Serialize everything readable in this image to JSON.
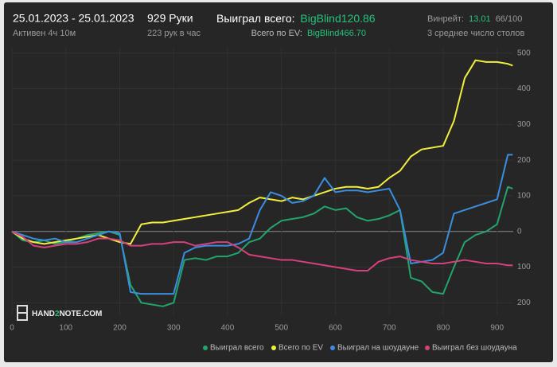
{
  "header": {
    "date_range": "25.01.2023 - 25.01.2023",
    "active": "Активен 4ч 10м",
    "hands": "929 Руки",
    "hands_per_hour": "223 рук в час",
    "won_label": "Выиграл всего:",
    "won_value": "BigBlind120.86",
    "ev_label": "Всего по EV:",
    "ev_value": "BigBlind466.70",
    "winrate_label": "Винрейт:",
    "winrate_value": "13.01",
    "winrate_rest": "66/100",
    "tables": "3 среднее число столов"
  },
  "logo": {
    "part1": "HAND",
    "part2": "2",
    "part3": "NOTE.COM"
  },
  "chart_data": {
    "type": "line",
    "x": [
      0,
      20,
      40,
      60,
      80,
      100,
      120,
      140,
      160,
      180,
      200,
      220,
      240,
      260,
      280,
      300,
      320,
      340,
      360,
      380,
      400,
      420,
      440,
      460,
      480,
      500,
      520,
      540,
      560,
      580,
      600,
      620,
      640,
      660,
      680,
      700,
      720,
      740,
      760,
      780,
      800,
      820,
      840,
      860,
      880,
      900,
      920,
      929
    ],
    "series": [
      {
        "name": "Выиграл всего",
        "color": "#22a56c",
        "values": [
          0,
          -25,
          -30,
          -25,
          -35,
          -30,
          -20,
          -10,
          -5,
          0,
          -10,
          -150,
          -200,
          -205,
          -210,
          -200,
          -80,
          -75,
          -80,
          -70,
          -70,
          -60,
          -30,
          -20,
          10,
          30,
          35,
          40,
          50,
          70,
          60,
          65,
          40,
          30,
          35,
          45,
          60,
          -130,
          -140,
          -170,
          -175,
          -100,
          -30,
          -10,
          0,
          20,
          125,
          120
        ]
      },
      {
        "name": "Всего по EV",
        "color": "#f0f03c",
        "values": [
          0,
          -20,
          -30,
          -35,
          -30,
          -25,
          -20,
          -15,
          -10,
          -20,
          -30,
          -35,
          20,
          25,
          25,
          30,
          35,
          40,
          45,
          50,
          55,
          60,
          80,
          95,
          90,
          85,
          95,
          90,
          100,
          110,
          120,
          125,
          125,
          120,
          125,
          150,
          170,
          210,
          230,
          235,
          240,
          310,
          430,
          480,
          475,
          475,
          470,
          465
        ]
      },
      {
        "name": "Выиграл на шоудауне",
        "color": "#3a8ee0",
        "values": [
          0,
          -10,
          -20,
          -25,
          -20,
          -30,
          -30,
          -20,
          -10,
          0,
          -5,
          -170,
          -175,
          -175,
          -175,
          -175,
          -60,
          -45,
          -40,
          -40,
          -40,
          -35,
          -20,
          60,
          110,
          100,
          80,
          85,
          100,
          150,
          110,
          115,
          115,
          110,
          115,
          120,
          60,
          -90,
          -85,
          -80,
          -60,
          50,
          60,
          70,
          80,
          90,
          215,
          215
        ]
      },
      {
        "name": "Выиграл без шоудауна",
        "color": "#d6407c",
        "values": [
          0,
          -15,
          -40,
          -45,
          -40,
          -35,
          -35,
          -30,
          -20,
          -20,
          -25,
          -40,
          -40,
          -35,
          -35,
          -30,
          -30,
          -40,
          -35,
          -30,
          -30,
          -45,
          -65,
          -70,
          -75,
          -80,
          -80,
          -85,
          -90,
          -95,
          -100,
          -105,
          -110,
          -110,
          -85,
          -75,
          -70,
          -80,
          -85,
          -90,
          -90,
          -85,
          -80,
          -85,
          -90,
          -90,
          -95,
          -95
        ]
      }
    ],
    "xlim": [
      0,
      930
    ],
    "xticks": [
      0,
      100,
      200,
      300,
      400,
      500,
      600,
      700,
      800,
      900
    ],
    "ylim": [
      -235,
      515
    ],
    "yticks": [
      {
        "value": -200,
        "label": "200"
      },
      {
        "value": -100,
        "label": "100"
      },
      0,
      100,
      200,
      300,
      400,
      500
    ],
    "grid": true
  }
}
